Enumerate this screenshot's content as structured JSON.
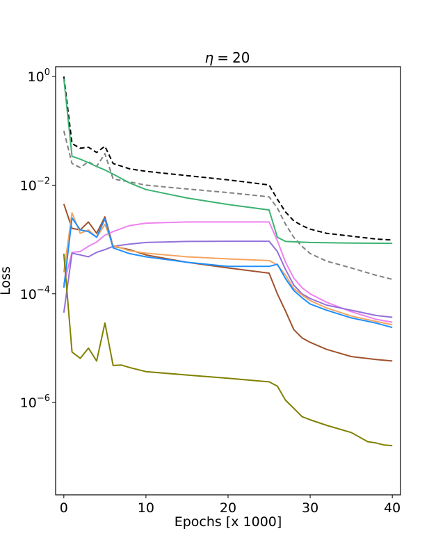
{
  "chart_data": {
    "type": "line",
    "title": "η = 20",
    "title_math": {
      "symbol": "η",
      "op": "=",
      "value": "20"
    },
    "xlabel": "Epochs [x 1000]",
    "ylabel": "Loss",
    "xlim": [
      -1,
      41
    ],
    "ylim_log10": [
      -7.7,
      0.18
    ],
    "yscale": "log",
    "grid": false,
    "legend": "none",
    "x_ticks": [
      {
        "label": "0",
        "value": 0
      },
      {
        "label": "10",
        "value": 10
      },
      {
        "label": "20",
        "value": 20
      },
      {
        "label": "30",
        "value": 30
      },
      {
        "label": "40",
        "value": 40
      }
    ],
    "y_ticks": [
      {
        "base": "10",
        "exp": "0",
        "log10": 0
      },
      {
        "base": "10",
        "exp": "−2",
        "log10": -2
      },
      {
        "base": "10",
        "exp": "−4",
        "log10": -4
      },
      {
        "base": "10",
        "exp": "−6",
        "log10": -6
      }
    ],
    "series": [
      {
        "color": "#000000",
        "dash": true,
        "points": [
          [
            0,
            1.0
          ],
          [
            1,
            0.058
          ],
          [
            2,
            0.048
          ],
          [
            3,
            0.05
          ],
          [
            4,
            0.04
          ],
          [
            5,
            0.052
          ],
          [
            6,
            0.025
          ],
          [
            8,
            0.02
          ],
          [
            10,
            0.018
          ],
          [
            15,
            0.015
          ],
          [
            20,
            0.0125
          ],
          [
            25,
            0.0101
          ],
          [
            26,
            0.0055
          ],
          [
            27,
            0.0032
          ],
          [
            28,
            0.0022
          ],
          [
            29,
            0.0018
          ],
          [
            30,
            0.00155
          ],
          [
            32,
            0.0013
          ],
          [
            35,
            0.00115
          ],
          [
            38,
            0.00102
          ],
          [
            40,
            0.00098
          ]
        ]
      },
      {
        "color": "#808080",
        "dash": true,
        "points": [
          [
            0,
            0.1
          ],
          [
            1,
            0.025
          ],
          [
            2,
            0.021
          ],
          [
            3,
            0.027
          ],
          [
            4,
            0.022
          ],
          [
            5,
            0.038
          ],
          [
            6,
            0.013
          ],
          [
            8,
            0.0115
          ],
          [
            10,
            0.01
          ],
          [
            15,
            0.0085
          ],
          [
            20,
            0.0073
          ],
          [
            25,
            0.0061
          ],
          [
            26,
            0.0038
          ],
          [
            27,
            0.0019
          ],
          [
            28,
            0.0011
          ],
          [
            29,
            0.00075
          ],
          [
            30,
            0.00055
          ],
          [
            32,
            0.0004
          ],
          [
            35,
            0.0003
          ],
          [
            38,
            0.00022
          ],
          [
            40,
            0.000185
          ]
        ]
      },
      {
        "color": "#3cb371",
        "points": [
          [
            0,
            0.92
          ],
          [
            1,
            0.034
          ],
          [
            2,
            0.03
          ],
          [
            3,
            0.026
          ],
          [
            4,
            0.022
          ],
          [
            5,
            0.019
          ],
          [
            6,
            0.016
          ],
          [
            8,
            0.011
          ],
          [
            10,
            0.0083
          ],
          [
            15,
            0.0058
          ],
          [
            20,
            0.0044
          ],
          [
            25,
            0.0035
          ],
          [
            26,
            0.0011
          ],
          [
            27,
            0.00092
          ],
          [
            30,
            0.00088
          ],
          [
            35,
            0.00086
          ],
          [
            40,
            0.00085
          ]
        ]
      },
      {
        "color": "#a0522d",
        "points": [
          [
            0,
            0.0045
          ],
          [
            1,
            0.0016
          ],
          [
            2,
            0.0015
          ],
          [
            3,
            0.0021
          ],
          [
            4,
            0.0013
          ],
          [
            5,
            0.0026
          ],
          [
            6,
            0.00075
          ],
          [
            8,
            0.00065
          ],
          [
            10,
            0.00052
          ],
          [
            15,
            0.00038
          ],
          [
            20,
            0.0003
          ],
          [
            25,
            0.00024
          ],
          [
            26,
            0.0001
          ],
          [
            27,
            4.8e-05
          ],
          [
            28,
            2.2e-05
          ],
          [
            29,
            1.55e-05
          ],
          [
            30,
            1.28e-05
          ],
          [
            32,
            9.5e-06
          ],
          [
            35,
            7e-06
          ],
          [
            38,
            6.2e-06
          ],
          [
            40,
            5.8e-06
          ]
        ]
      },
      {
        "color": "#ee82ee",
        "points": [
          [
            0,
            0.00015
          ],
          [
            1,
            0.00058
          ],
          [
            2,
            0.0006
          ],
          [
            3,
            0.00075
          ],
          [
            4,
            0.0009
          ],
          [
            5,
            0.0012
          ],
          [
            6,
            0.0014
          ],
          [
            8,
            0.0018
          ],
          [
            10,
            0.002
          ],
          [
            15,
            0.0021
          ],
          [
            20,
            0.0021
          ],
          [
            25,
            0.0021
          ],
          [
            26,
            0.00095
          ],
          [
            27,
            0.00038
          ],
          [
            28,
            0.000195
          ],
          [
            29,
            0.00013
          ],
          [
            30,
            0.0001
          ],
          [
            32,
            7e-05
          ],
          [
            35,
            4.7e-05
          ],
          [
            38,
            3.4e-05
          ],
          [
            40,
            3e-05
          ]
        ]
      },
      {
        "color": "#9370db",
        "points": [
          [
            0,
            4.5e-05
          ],
          [
            1,
            0.00056
          ],
          [
            2,
            0.00052
          ],
          [
            3,
            0.00048
          ],
          [
            4,
            0.00058
          ],
          [
            5,
            0.00065
          ],
          [
            6,
            0.00075
          ],
          [
            8,
            0.00082
          ],
          [
            10,
            0.00088
          ],
          [
            15,
            0.00092
          ],
          [
            20,
            0.00093
          ],
          [
            25,
            0.00093
          ],
          [
            26,
            0.0006
          ],
          [
            27,
            0.00028
          ],
          [
            28,
            0.000145
          ],
          [
            29,
            0.0001
          ],
          [
            30,
            8.2e-05
          ],
          [
            32,
            6.2e-05
          ],
          [
            35,
            5e-05
          ],
          [
            38,
            4e-05
          ],
          [
            40,
            3.7e-05
          ]
        ]
      },
      {
        "color": "#f4a460",
        "points": [
          [
            0,
            0.00025
          ],
          [
            1,
            0.0031
          ],
          [
            2,
            0.0013
          ],
          [
            3,
            0.0015
          ],
          [
            4,
            0.0011
          ],
          [
            5,
            0.0019
          ],
          [
            6,
            0.00078
          ],
          [
            8,
            0.00062
          ],
          [
            10,
            0.00056
          ],
          [
            15,
            0.00048
          ],
          [
            20,
            0.00044
          ],
          [
            25,
            0.00041
          ],
          [
            26,
            0.00034
          ],
          [
            27,
            0.00022
          ],
          [
            28,
            0.000125
          ],
          [
            29,
            9.5e-05
          ],
          [
            30,
            7.5e-05
          ],
          [
            32,
            5.5e-05
          ],
          [
            35,
            3.9e-05
          ],
          [
            38,
            3.1e-05
          ],
          [
            40,
            2.7e-05
          ]
        ]
      },
      {
        "color": "#1e90ff",
        "points": [
          [
            0,
            0.00013
          ],
          [
            1,
            0.0025
          ],
          [
            2,
            0.0015
          ],
          [
            3,
            0.0014
          ],
          [
            4,
            0.0011
          ],
          [
            5,
            0.0024
          ],
          [
            6,
            0.0007
          ],
          [
            8,
            0.00055
          ],
          [
            10,
            0.00048
          ],
          [
            15,
            0.00038
          ],
          [
            20,
            0.00032
          ],
          [
            25,
            0.00032
          ],
          [
            26,
            0.00035
          ],
          [
            27,
            0.00019
          ],
          [
            28,
            0.000115
          ],
          [
            29,
            8.5e-05
          ],
          [
            30,
            6.5e-05
          ],
          [
            32,
            5e-05
          ],
          [
            35,
            3.6e-05
          ],
          [
            38,
            2.9e-05
          ],
          [
            40,
            2.4e-05
          ]
        ]
      },
      {
        "color": "#808000",
        "points": [
          [
            0,
            0.00055
          ],
          [
            1,
            8.5e-06
          ],
          [
            2,
            6.5e-06
          ],
          [
            3,
            1e-05
          ],
          [
            4,
            5.8e-06
          ],
          [
            5,
            2.9e-05
          ],
          [
            6,
            4.8e-06
          ],
          [
            7,
            4.9e-06
          ],
          [
            8,
            4.4e-06
          ],
          [
            10,
            3.7e-06
          ],
          [
            15,
            3.2e-06
          ],
          [
            20,
            2.8e-06
          ],
          [
            25,
            2.4e-06
          ],
          [
            26,
            2e-06
          ],
          [
            27,
            1.1e-06
          ],
          [
            28,
            7.8e-07
          ],
          [
            29,
            5.5e-07
          ],
          [
            30,
            4.8e-07
          ],
          [
            32,
            3.8e-07
          ],
          [
            35,
            2.8e-07
          ],
          [
            37,
            1.9e-07
          ],
          [
            38,
            1.8e-07
          ],
          [
            39,
            1.65e-07
          ],
          [
            40,
            1.6e-07
          ]
        ]
      }
    ]
  }
}
